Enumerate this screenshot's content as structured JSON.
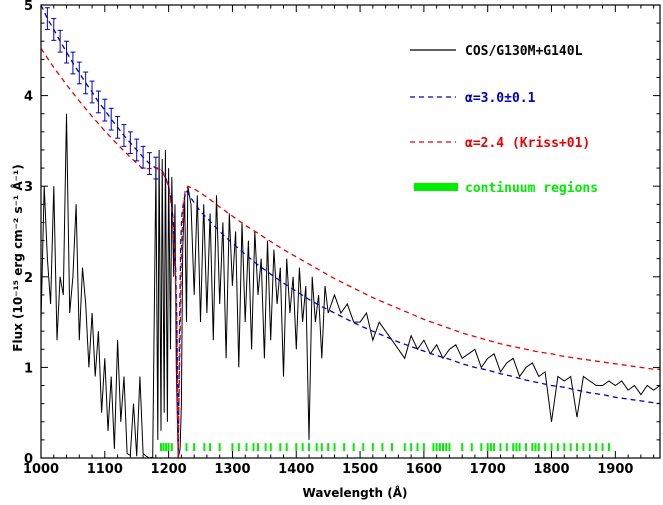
{
  "chart_data": {
    "type": "line",
    "title": "",
    "xlabel": "Wavelength (Å)",
    "ylabel": "Flux (10⁻¹⁵ erg cm⁻² s⁻¹ Å⁻¹)",
    "xlim": [
      1000,
      1970
    ],
    "ylim": [
      0,
      5
    ],
    "x_ticks": [
      1000,
      1100,
      1200,
      1300,
      1400,
      1500,
      1600,
      1700,
      1800,
      1900
    ],
    "y_ticks": [
      0,
      1,
      2,
      3,
      4,
      5
    ],
    "grid": false,
    "legend_position": "top-right",
    "colors": {
      "observed": "#000000",
      "fit": "#0000cc",
      "kriss": "#ee0000",
      "continuum": "#00ee00"
    },
    "series": [
      {
        "name": "COS/G130M+G140L",
        "x": [
          1000,
          1005,
          1010,
          1015,
          1020,
          1025,
          1030,
          1035,
          1040,
          1045,
          1050,
          1055,
          1060,
          1065,
          1070,
          1075,
          1080,
          1085,
          1090,
          1095,
          1100,
          1105,
          1110,
          1115,
          1120,
          1125,
          1130,
          1135,
          1140,
          1145,
          1150,
          1155,
          1160,
          1165,
          1170,
          1175,
          1180,
          1183,
          1185,
          1188,
          1190,
          1193,
          1195,
          1198,
          1200,
          1203,
          1205,
          1208,
          1210,
          1212,
          1215,
          1218,
          1220,
          1222,
          1225,
          1228,
          1230,
          1235,
          1240,
          1245,
          1250,
          1255,
          1260,
          1265,
          1270,
          1275,
          1280,
          1285,
          1290,
          1295,
          1300,
          1305,
          1310,
          1315,
          1320,
          1325,
          1330,
          1335,
          1340,
          1345,
          1350,
          1355,
          1360,
          1365,
          1370,
          1375,
          1380,
          1385,
          1390,
          1395,
          1400,
          1405,
          1410,
          1415,
          1420,
          1425,
          1430,
          1435,
          1440,
          1445,
          1450,
          1460,
          1470,
          1480,
          1490,
          1500,
          1510,
          1520,
          1530,
          1540,
          1550,
          1560,
          1570,
          1580,
          1590,
          1600,
          1610,
          1620,
          1630,
          1640,
          1650,
          1660,
          1670,
          1680,
          1690,
          1700,
          1710,
          1720,
          1730,
          1740,
          1750,
          1760,
          1770,
          1780,
          1790,
          1800,
          1810,
          1820,
          1830,
          1840,
          1850,
          1860,
          1870,
          1880,
          1890,
          1900,
          1910,
          1920,
          1930,
          1940,
          1950,
          1960,
          1970
        ],
        "values": [
          1.5,
          3.0,
          2.2,
          1.7,
          3.0,
          1.3,
          2.0,
          1.8,
          3.8,
          1.6,
          2.0,
          2.8,
          1.3,
          2.1,
          1.7,
          1.0,
          1.6,
          0.9,
          1.4,
          0.5,
          1.1,
          0.3,
          0.9,
          0.1,
          1.3,
          0.4,
          0.9,
          0.05,
          0.03,
          0.6,
          0.02,
          0.9,
          0.05,
          0.02,
          0.0,
          0.01,
          3.2,
          0.2,
          3.4,
          0.3,
          3.3,
          0.5,
          3.4,
          0.4,
          3.2,
          1.2,
          3.1,
          2.0,
          2.8,
          1.0,
          0.0,
          0.1,
          0.6,
          2.3,
          2.9,
          1.5,
          3.0,
          2.8,
          1.8,
          2.9,
          1.5,
          2.8,
          1.6,
          2.7,
          1.3,
          2.9,
          1.7,
          2.6,
          1.1,
          2.7,
          1.9,
          2.5,
          1.0,
          2.6,
          1.5,
          2.4,
          1.2,
          2.5,
          1.8,
          2.2,
          1.1,
          2.4,
          1.3,
          2.3,
          1.7,
          2.1,
          0.9,
          2.2,
          1.6,
          2.0,
          1.2,
          2.1,
          1.5,
          1.9,
          0.2,
          2.0,
          1.5,
          1.8,
          1.1,
          1.9,
          1.6,
          1.8,
          1.6,
          1.7,
          1.5,
          1.5,
          1.6,
          1.3,
          1.5,
          1.4,
          1.3,
          1.2,
          1.1,
          1.35,
          1.2,
          1.3,
          1.15,
          1.25,
          1.1,
          1.2,
          1.25,
          1.1,
          1.15,
          1.2,
          1.0,
          1.1,
          1.15,
          0.95,
          1.05,
          1.1,
          0.9,
          1.0,
          1.05,
          0.9,
          0.95,
          0.4,
          0.9,
          0.85,
          0.9,
          0.45,
          0.9,
          0.85,
          0.8,
          0.8,
          0.85,
          0.8,
          0.85,
          0.75,
          0.8,
          0.7,
          0.8,
          0.75,
          0.8
        ]
      },
      {
        "name": "α=3.0±0.1",
        "style": "dashed",
        "x": [
          1000,
          1010,
          1020,
          1030,
          1040,
          1050,
          1060,
          1070,
          1080,
          1090,
          1100,
          1110,
          1120,
          1130,
          1140,
          1150,
          1160,
          1170,
          1180,
          1185,
          1190,
          1195,
          1200,
          1205,
          1208,
          1211,
          1213,
          1215,
          1216,
          1217,
          1219,
          1221,
          1224,
          1228,
          1232,
          1240,
          1250,
          1260,
          1280,
          1300,
          1320,
          1340,
          1360,
          1380,
          1400,
          1420,
          1440,
          1460,
          1480,
          1500,
          1520,
          1540,
          1560,
          1580,
          1600,
          1620,
          1640,
          1660,
          1680,
          1700,
          1720,
          1740,
          1760,
          1780,
          1800,
          1820,
          1840,
          1860,
          1880,
          1900,
          1920,
          1940,
          1960,
          1970
        ],
        "values": [
          5.0,
          4.85,
          4.73,
          4.6,
          4.48,
          4.36,
          4.25,
          4.14,
          4.04,
          3.93,
          3.84,
          3.74,
          3.65,
          3.56,
          3.48,
          3.4,
          3.32,
          3.25,
          3.2,
          3.2,
          3.17,
          3.1,
          3.0,
          2.8,
          2.55,
          2.1,
          1.5,
          0.0,
          0.6,
          1.4,
          2.4,
          2.7,
          2.85,
          2.95,
          2.9,
          2.82,
          2.72,
          2.65,
          2.5,
          2.37,
          2.25,
          2.13,
          2.03,
          1.93,
          1.84,
          1.75,
          1.67,
          1.6,
          1.53,
          1.46,
          1.4,
          1.34,
          1.28,
          1.23,
          1.18,
          1.13,
          1.09,
          1.04,
          1.0,
          0.97,
          0.93,
          0.9,
          0.86,
          0.83,
          0.8,
          0.78,
          0.75,
          0.72,
          0.7,
          0.67,
          0.65,
          0.63,
          0.61,
          0.6
        ]
      },
      {
        "name": "α=2.4 (Kriss+01)",
        "style": "dashed",
        "x": [
          1000,
          1020,
          1040,
          1060,
          1080,
          1100,
          1120,
          1140,
          1160,
          1180,
          1190,
          1200,
          1205,
          1210,
          1213,
          1215,
          1216,
          1218,
          1220,
          1223,
          1226,
          1230,
          1240,
          1260,
          1280,
          1300,
          1320,
          1340,
          1360,
          1380,
          1400,
          1420,
          1440,
          1460,
          1480,
          1500,
          1520,
          1540,
          1560,
          1580,
          1600,
          1620,
          1640,
          1660,
          1680,
          1700,
          1720,
          1740,
          1760,
          1780,
          1800,
          1820,
          1840,
          1860,
          1880,
          1900,
          1920,
          1940,
          1960,
          1970
        ],
        "values": [
          4.52,
          4.31,
          4.12,
          3.94,
          3.77,
          3.61,
          3.46,
          3.32,
          3.19,
          3.2,
          3.17,
          3.0,
          2.75,
          2.2,
          1.4,
          0.0,
          0.5,
          1.3,
          2.3,
          2.75,
          2.95,
          3.0,
          2.97,
          2.88,
          2.77,
          2.67,
          2.57,
          2.48,
          2.39,
          2.3,
          2.22,
          2.14,
          2.06,
          1.98,
          1.91,
          1.84,
          1.77,
          1.71,
          1.65,
          1.59,
          1.53,
          1.48,
          1.43,
          1.38,
          1.34,
          1.3,
          1.26,
          1.23,
          1.2,
          1.17,
          1.15,
          1.12,
          1.1,
          1.08,
          1.06,
          1.04,
          1.02,
          1.0,
          0.98,
          0.98
        ]
      }
    ],
    "error_bars": {
      "x": [
        1010,
        1020,
        1030,
        1040,
        1050,
        1060,
        1070,
        1080,
        1090,
        1100,
        1110,
        1120,
        1130,
        1140,
        1150,
        1160,
        1170,
        1180
      ],
      "values": [
        4.85,
        4.73,
        4.6,
        4.48,
        4.36,
        4.25,
        4.14,
        4.04,
        3.93,
        3.84,
        3.74,
        3.65,
        3.56,
        3.48,
        3.4,
        3.32,
        3.25,
        3.2
      ],
      "err": 0.12
    },
    "continuum_regions": {
      "name": "continuum regions",
      "x": [
        1188,
        1192,
        1196,
        1200,
        1205,
        1228,
        1240,
        1256,
        1265,
        1280,
        1300,
        1310,
        1322,
        1333,
        1340,
        1352,
        1360,
        1375,
        1385,
        1400,
        1410,
        1420,
        1432,
        1440,
        1450,
        1460,
        1475,
        1490,
        1505,
        1520,
        1535,
        1550,
        1570,
        1580,
        1590,
        1600,
        1615,
        1620,
        1625,
        1630,
        1635,
        1640,
        1660,
        1675,
        1690,
        1700,
        1705,
        1710,
        1720,
        1730,
        1740,
        1745,
        1750,
        1760,
        1770,
        1775,
        1780,
        1790,
        1800,
        1810,
        1820,
        1830,
        1840,
        1850,
        1860,
        1870,
        1880,
        1890
      ],
      "y": 0.12
    },
    "legend": [
      {
        "label": "COS/G130M+G140L",
        "color": "#000000",
        "style": "solid"
      },
      {
        "label": "α=3.0±0.1",
        "color": "#0000cc",
        "style": "dashed"
      },
      {
        "label": "α=2.4 (Kriss+01)",
        "color": "#ee0000",
        "style": "dashed"
      },
      {
        "label": "continuum regions",
        "color": "#00ee00",
        "style": "band"
      }
    ]
  }
}
